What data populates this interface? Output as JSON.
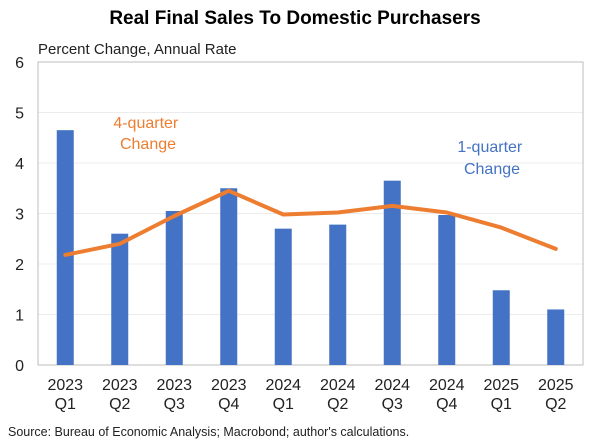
{
  "chart_data": {
    "type": "bar",
    "title": "Real Final Sales To Domestic Purchasers",
    "ylabel": "Percent Change, Annual Rate",
    "xlabel": "",
    "ylim": [
      0,
      6
    ],
    "yticks": [
      "0",
      "1",
      "2",
      "3",
      "4",
      "5",
      "6"
    ],
    "categories": [
      [
        "2023",
        "Q1"
      ],
      [
        "2023",
        "Q2"
      ],
      [
        "2023",
        "Q3"
      ],
      [
        "2023",
        "Q4"
      ],
      [
        "2024",
        "Q1"
      ],
      [
        "2024",
        "Q2"
      ],
      [
        "2024",
        "Q3"
      ],
      [
        "2024",
        "Q4"
      ],
      [
        "2025",
        "Q1"
      ],
      [
        "2025",
        "Q2"
      ]
    ],
    "series": [
      {
        "name": "1-quarter Change",
        "type": "bar",
        "color": "#4472c4",
        "values": [
          4.65,
          2.6,
          3.05,
          3.5,
          2.7,
          2.78,
          3.65,
          2.97,
          1.48,
          1.1
        ]
      },
      {
        "name": "4-quarter Change",
        "type": "line",
        "color": "#ed7d31",
        "values": [
          2.18,
          2.4,
          2.95,
          3.45,
          2.98,
          3.02,
          3.15,
          3.02,
          2.72,
          2.3
        ]
      }
    ],
    "annotations": [
      {
        "lines": [
          "4-quarter",
          "Change"
        ],
        "color": "#ed7d31"
      },
      {
        "lines": [
          "1-quarter",
          "Change"
        ],
        "color": "#4472c4"
      }
    ],
    "grid": true,
    "source": "Source: Bureau of Economic Analysis; Macrobond; author's calculations."
  }
}
